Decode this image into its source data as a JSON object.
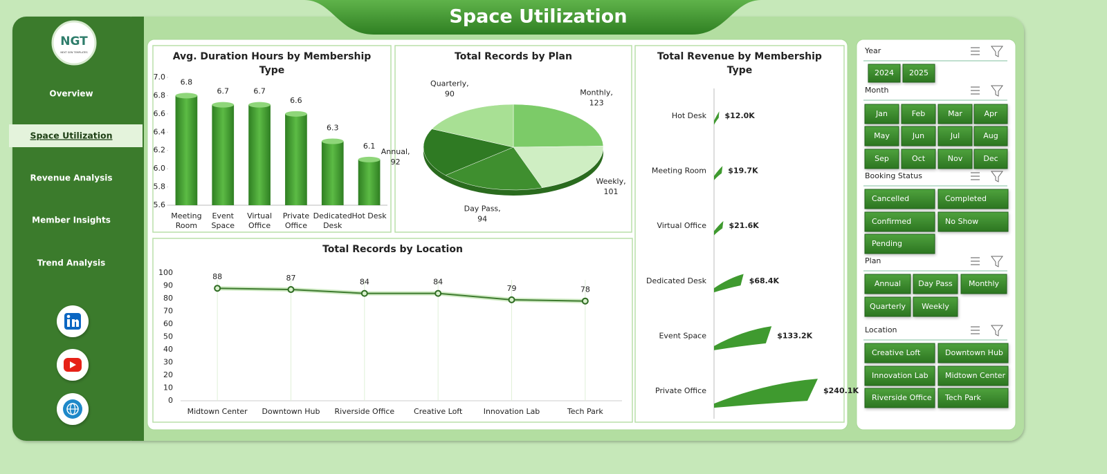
{
  "header": {
    "title": "Space Utilization"
  },
  "logo": {
    "text": "NGT",
    "subtext": "NEXT GEN TEMPLATES"
  },
  "nav": [
    "Overview",
    "Space Utilization",
    "Revenue Analysis",
    "Member Insights",
    "Trend Analysis"
  ],
  "chart_data": [
    {
      "type": "bar",
      "title": "Avg. Duration Hours by Membership Type",
      "categories": [
        "Meeting Room",
        "Event Space",
        "Virtual Office",
        "Private Office",
        "Dedicated Desk",
        "Hot Desk"
      ],
      "values": [
        6.8,
        6.7,
        6.7,
        6.6,
        6.3,
        6.1
      ],
      "color": "#3f9a2f",
      "ylim": [
        5.6,
        7.0
      ],
      "yticks": [
        5.6,
        5.8,
        {
          "value": 6.0,
          "label": "6.0"
        },
        6.2,
        6.4,
        6.6,
        6.8,
        {
          "value": 7.0,
          "label": "7.0"
        }
      ]
    },
    {
      "type": "pie",
      "title": "Total Records by Plan",
      "categories": [
        "Monthly,",
        "Weekly,",
        "Day Pass,",
        "Annual,",
        "Quarterly,"
      ],
      "values": [
        123,
        101,
        94,
        92,
        90
      ],
      "colors": [
        "#7ccb68",
        "#cfeec3",
        "#3f8f2f",
        "#2f7a23",
        "#a8e094"
      ]
    },
    {
      "type": "line",
      "title": "Total Records by Location",
      "categories": [
        "Midtown Center",
        "Downtown Hub",
        "Riverside Office",
        "Creative Loft",
        "Innovation Lab",
        "Tech Park"
      ],
      "values": [
        88,
        87,
        84,
        84,
        79,
        78
      ],
      "color": "#3d7a2e",
      "ylim": [
        0,
        100
      ],
      "yticks": [
        0,
        10,
        20,
        30,
        40,
        50,
        60,
        70,
        80,
        90,
        100
      ],
      "grid": true
    },
    {
      "type": "hbar",
      "title": "Total Revenue by Membership Type",
      "categories": [
        "Hot Desk",
        "Meeting Room",
        "Virtual Office",
        "Dedicated Desk",
        "Event Space",
        "Private Office"
      ],
      "values": [
        12.0,
        19.7,
        21.6,
        68.4,
        133.2,
        240.1
      ],
      "value_labels": [
        "$12.0K",
        "$19.7K",
        "$21.6K",
        "$68.4K",
        "$133.2K",
        "$240.1K"
      ],
      "color": "#3f9a2f"
    }
  ],
  "slicers": [
    {
      "title": "Year",
      "items": [
        "2024",
        "2025"
      ]
    },
    {
      "title": "Month",
      "items": [
        "Jan",
        "Feb",
        "Mar",
        "Apr",
        "May",
        "Jun",
        "Jul",
        "Aug",
        "Sep",
        "Oct",
        "Nov",
        "Dec"
      ]
    },
    {
      "title": "Booking Status",
      "items": [
        "Cancelled",
        "Completed",
        "Confirmed",
        "No Show",
        "Pending"
      ]
    },
    {
      "title": "Plan",
      "items": [
        "Annual",
        "Day Pass",
        "Monthly",
        "Quarterly",
        "Weekly"
      ]
    },
    {
      "title": "Location",
      "items": [
        "Creative Loft",
        "Downtown Hub",
        "Innovation Lab",
        "Midtown Center",
        "Riverside Office",
        "Tech Park"
      ]
    }
  ]
}
